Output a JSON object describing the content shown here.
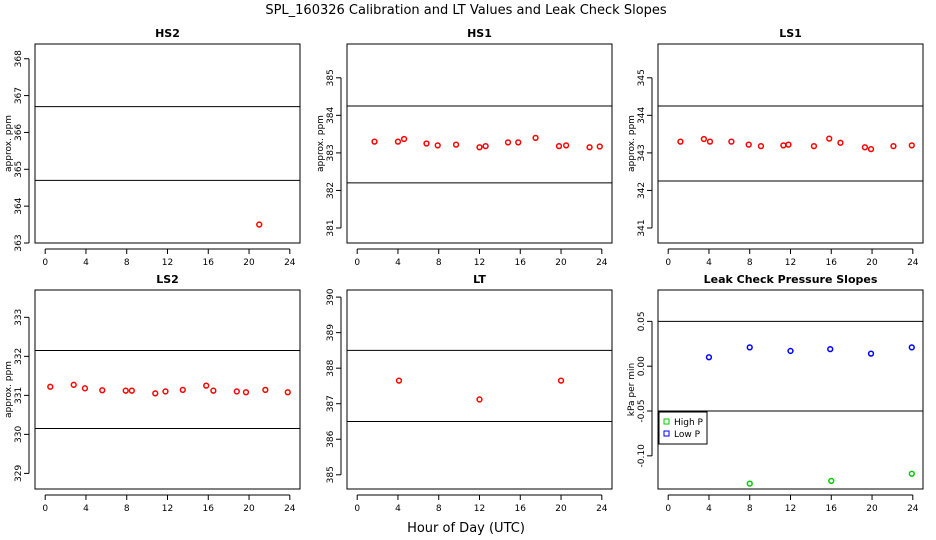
{
  "figure": {
    "title": "SPL_160326  Calibration and LT Values and Leak Check Slopes",
    "xlabel": "Hour of Day (UTC)"
  },
  "chart_data": [
    {
      "type": "scatter",
      "title": "HS2",
      "ylabel": "approx. ppm",
      "xlim": [
        -1,
        25
      ],
      "ylim": [
        363.0,
        368.4
      ],
      "xticks": [
        0,
        4,
        8,
        12,
        16,
        20,
        24
      ],
      "yticks": [
        363,
        364,
        365,
        366,
        367,
        368
      ],
      "hlines": [
        364.7,
        366.7
      ],
      "series": [
        {
          "name": "HS2",
          "color": "#ff0000",
          "marker": "circle",
          "x": [
            21.0
          ],
          "y": [
            363.5
          ]
        }
      ]
    },
    {
      "type": "scatter",
      "title": "HS1",
      "ylabel": "approx. ppm",
      "xlim": [
        -1,
        25
      ],
      "ylim": [
        380.6,
        385.9
      ],
      "xticks": [
        0,
        4,
        8,
        12,
        16,
        20,
        24
      ],
      "yticks": [
        381,
        382,
        383,
        384,
        385
      ],
      "hlines": [
        382.2,
        384.25
      ],
      "series": [
        {
          "name": "HS1",
          "color": "#ff0000",
          "marker": "circle",
          "x": [
            1.7,
            4.0,
            4.6,
            6.8,
            7.9,
            9.7,
            12.0,
            12.6,
            14.8,
            15.8,
            17.5,
            19.8,
            20.5,
            22.8,
            23.8
          ],
          "y": [
            383.3,
            383.3,
            383.37,
            383.25,
            383.2,
            383.22,
            383.15,
            383.18,
            383.28,
            383.28,
            383.4,
            383.18,
            383.2,
            383.15,
            383.17
          ]
        }
      ]
    },
    {
      "type": "scatter",
      "title": "LS1",
      "ylabel": "approx. ppm",
      "xlim": [
        -1,
        25
      ],
      "ylim": [
        340.6,
        345.9
      ],
      "xticks": [
        0,
        4,
        8,
        12,
        16,
        20,
        24
      ],
      "yticks": [
        341,
        342,
        343,
        344,
        345
      ],
      "hlines": [
        342.25,
        344.25
      ],
      "series": [
        {
          "name": "LS1",
          "color": "#ff0000",
          "marker": "circle",
          "x": [
            1.2,
            3.5,
            4.1,
            6.2,
            7.9,
            9.1,
            11.3,
            11.8,
            14.3,
            15.8,
            16.9,
            19.3,
            19.9,
            22.1,
            23.9
          ],
          "y": [
            343.3,
            343.37,
            343.3,
            343.3,
            343.22,
            343.18,
            343.2,
            343.22,
            343.18,
            343.38,
            343.27,
            343.15,
            343.1,
            343.18,
            343.2
          ]
        }
      ]
    },
    {
      "type": "scatter",
      "title": "LS2",
      "ylabel": "approx. ppm",
      "xlim": [
        -1,
        25
      ],
      "ylim": [
        328.6,
        333.7
      ],
      "xticks": [
        0,
        4,
        8,
        12,
        16,
        20,
        24
      ],
      "yticks": [
        329,
        330,
        331,
        332,
        333
      ],
      "hlines": [
        330.15,
        332.15
      ],
      "series": [
        {
          "name": "LS2",
          "color": "#ff0000",
          "marker": "circle",
          "x": [
            0.5,
            2.8,
            3.9,
            5.6,
            7.9,
            8.5,
            10.8,
            11.8,
            13.5,
            15.8,
            16.5,
            18.8,
            19.7,
            21.6,
            23.8
          ],
          "y": [
            331.22,
            331.27,
            331.18,
            331.13,
            331.12,
            331.12,
            331.05,
            331.1,
            331.14,
            331.25,
            331.12,
            331.1,
            331.08,
            331.14,
            331.08
          ]
        }
      ]
    },
    {
      "type": "scatter",
      "title": "LT",
      "ylabel": "",
      "xlim": [
        -1,
        25
      ],
      "ylim": [
        384.6,
        390.2
      ],
      "xticks": [
        0,
        4,
        8,
        12,
        16,
        20,
        24
      ],
      "yticks": [
        385,
        386,
        387,
        388,
        389,
        390
      ],
      "hlines": [
        386.5,
        388.5
      ],
      "series": [
        {
          "name": "LT",
          "color": "#ff0000",
          "marker": "circle",
          "x": [
            4.1,
            12.0,
            20.0
          ],
          "y": [
            387.65,
            387.12,
            387.65
          ]
        }
      ]
    },
    {
      "type": "scatter",
      "title": "Leak Check Pressure Slopes",
      "ylabel": "kPa per min",
      "xlim": [
        -1,
        25
      ],
      "ylim": [
        -0.137,
        0.085
      ],
      "xticks": [
        0,
        4,
        8,
        12,
        16,
        20,
        24
      ],
      "yticks": [
        -0.1,
        -0.05,
        0.0,
        0.05
      ],
      "ytick_labels": [
        "-0.10",
        "-0.05",
        "0.00",
        "0.05"
      ],
      "hlines": [
        -0.05,
        0.05
      ],
      "legend": {
        "placement": "bottom-left",
        "entries": [
          "High P",
          "Low P"
        ]
      },
      "series": [
        {
          "name": "High P",
          "color": "#00cc00",
          "marker": "circle",
          "x": [
            8.0,
            16.0,
            23.9
          ],
          "y": [
            -0.131,
            -0.128,
            -0.12
          ]
        },
        {
          "name": "Low P",
          "color": "#0000ff",
          "marker": "circle",
          "x": [
            4.0,
            8.0,
            12.0,
            15.9,
            19.9,
            23.9
          ],
          "y": [
            0.01,
            0.021,
            0.017,
            0.019,
            0.014,
            0.021
          ]
        }
      ]
    }
  ]
}
